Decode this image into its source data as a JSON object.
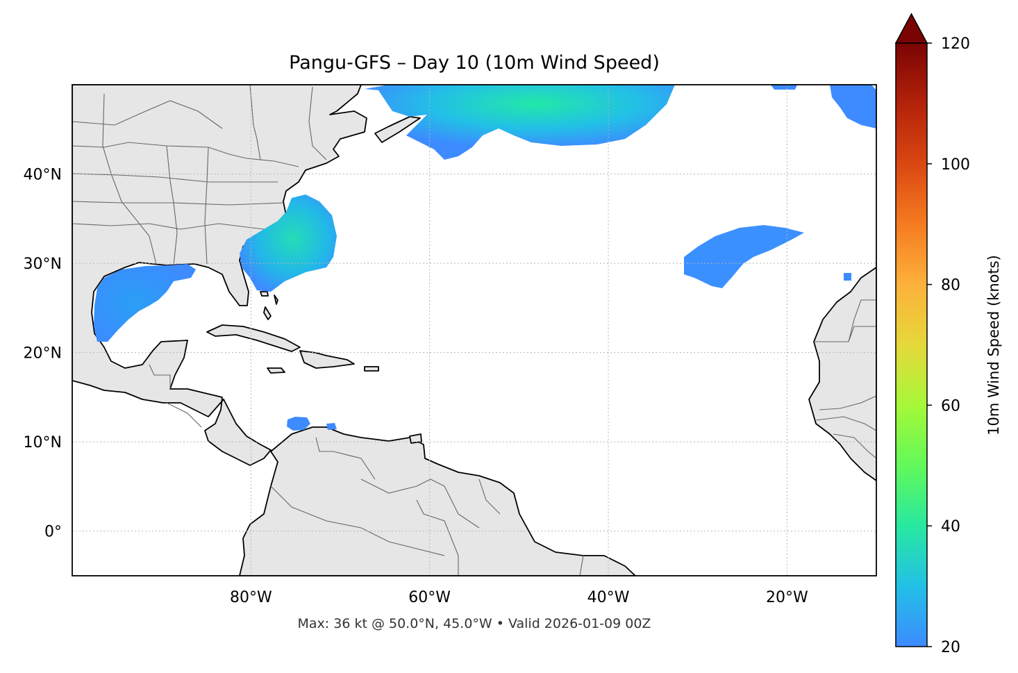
{
  "title": "Pangu-GFS – Day 10 (10m Wind Speed)",
  "footer": "Max: 36 kt @ 50.0°N, 45.0°W • Valid 2026-01-09 00Z",
  "map": {
    "lon_range": [
      -100,
      -10
    ],
    "lat_range": [
      -5,
      50
    ],
    "x_ticks": [
      {
        "lon": -80,
        "label": "80°W"
      },
      {
        "lon": -60,
        "label": "60°W"
      },
      {
        "lon": -40,
        "label": "40°W"
      },
      {
        "lon": -20,
        "label": "20°W"
      }
    ],
    "y_ticks": [
      {
        "lat": 40,
        "label": "40°N"
      },
      {
        "lat": 30,
        "label": "30°N"
      },
      {
        "lat": 20,
        "label": "20°N"
      },
      {
        "lat": 10,
        "label": "10°N"
      },
      {
        "lat": 0,
        "label": "0°"
      }
    ],
    "gridlines": true,
    "land_color": "#e6e6e6",
    "coast_color": "#000000",
    "border_color": "#666666"
  },
  "colorbar": {
    "label": "10m Wind Speed (knots)",
    "range": [
      20,
      120
    ],
    "ticks": [
      {
        "value": 20,
        "label": "20"
      },
      {
        "value": 40,
        "label": "40"
      },
      {
        "value": 60,
        "label": "60"
      },
      {
        "value": 80,
        "label": "80"
      },
      {
        "value": 100,
        "label": "100"
      },
      {
        "value": 120,
        "label": "120"
      }
    ],
    "colors": [
      "#3d8bff",
      "#22c0e6",
      "#28e8a0",
      "#62f95a",
      "#a6f838",
      "#e6d83a",
      "#fdb13b",
      "#f57b20",
      "#da4712",
      "#b3220a",
      "#7a0403"
    ],
    "extend": "max"
  },
  "wind_regions": [
    {
      "name": "north-atlantic-band",
      "max_kt": 36
    },
    {
      "name": "us-east-coast",
      "max_kt": 34
    },
    {
      "name": "gulf-of-mexico",
      "max_kt": 26
    },
    {
      "name": "central-atlantic",
      "max_kt": 24
    },
    {
      "name": "northeast-atlantic",
      "max_kt": 22
    },
    {
      "name": "caribbean-south",
      "max_kt": 21
    }
  ]
}
